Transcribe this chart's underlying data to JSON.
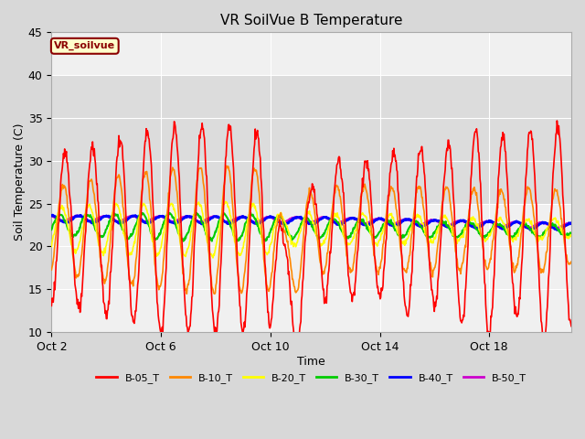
{
  "title": "VR SoilVue B Temperature",
  "xlabel": "Time",
  "ylabel": "Soil Temperature (C)",
  "ylim": [
    10,
    45
  ],
  "yticks": [
    10,
    15,
    20,
    25,
    30,
    35,
    40,
    45
  ],
  "xtick_labels": [
    "Oct 2",
    "Oct 6",
    "Oct 10",
    "Oct 14",
    "Oct 18"
  ],
  "xtick_positions": [
    0,
    4,
    8,
    12,
    16
  ],
  "xlim": [
    0,
    19
  ],
  "legend_label": "VR_soilvue",
  "series_labels": [
    "B-05_T",
    "B-10_T",
    "B-20_T",
    "B-30_T",
    "B-40_T",
    "B-50_T"
  ],
  "series_colors": [
    "#ff0000",
    "#ff8800",
    "#ffff00",
    "#00cc00",
    "#0000ff",
    "#cc00cc"
  ],
  "series_linewidths": [
    1.2,
    1.2,
    1.2,
    1.5,
    2.0,
    1.5
  ],
  "figure_bg": "#d8d8d8",
  "plot_bg": "#f0f0f0",
  "band_color": "#dcdcdc",
  "band_ymin": 25,
  "band_ymax": 40,
  "grid_color": "#ffffff",
  "title_fontsize": 11,
  "axis_fontsize": 9,
  "tick_fontsize": 9
}
